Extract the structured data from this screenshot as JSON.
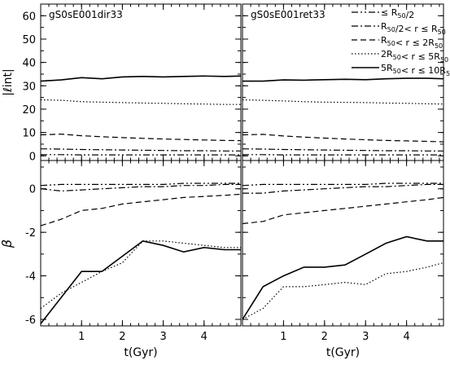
{
  "chart_data": {
    "type": "line",
    "xlabel": "t(Gyr)",
    "x_ticks": [
      1,
      2,
      3,
      4
    ],
    "xlim": [
      0,
      4.9
    ],
    "rows": [
      {
        "id": "lint",
        "ylabel": "|ℓint|",
        "ylim": [
          -2,
          65
        ],
        "yticks": [
          0,
          10,
          20,
          30,
          40,
          50,
          60
        ]
      },
      {
        "id": "beta",
        "ylabel": "β",
        "ylim": [
          -6.3,
          1.3
        ],
        "yticks": [
          0,
          -2,
          -4,
          -6
        ]
      }
    ],
    "legend": {
      "placement": "top-right",
      "entries": [
        {
          "style": "dashdotdot",
          "label": "≤ R50/2"
        },
        {
          "style": "dashdot",
          "label": "R50/2< r ≤ R50"
        },
        {
          "style": "dashed",
          "label": "R50< r ≤ 2R50"
        },
        {
          "style": "dotted",
          "label": "2R50< r ≤ 5R50"
        },
        {
          "style": "solid",
          "label": "5R50< r ≤ 10R50"
        }
      ]
    },
    "panels": [
      {
        "title": "gS0sE001dir33",
        "x": [
          0.0,
          0.5,
          1.0,
          1.5,
          2.0,
          2.5,
          3.0,
          3.5,
          4.0,
          4.5,
          4.9
        ],
        "lint": {
          "dashdotdot": [
            0.5,
            0.5,
            0.4,
            0.4,
            0.4,
            0.4,
            0.4,
            0.4,
            0.4,
            0.4,
            0.4
          ],
          "dashdot": [
            3.0,
            2.9,
            2.7,
            2.6,
            2.5,
            2.4,
            2.3,
            2.2,
            2.2,
            2.1,
            2.1
          ],
          "dashed": [
            9.0,
            9.3,
            8.6,
            8.2,
            7.8,
            7.5,
            7.2,
            7.0,
            6.8,
            6.6,
            6.5
          ],
          "dotted": [
            24.0,
            23.8,
            23.2,
            23.0,
            22.8,
            22.6,
            22.5,
            22.3,
            22.2,
            22.0,
            22.0
          ],
          "solid": [
            32.0,
            32.5,
            33.5,
            33.0,
            33.8,
            34.0,
            33.8,
            34.0,
            34.2,
            34.0,
            34.2
          ]
        },
        "beta": {
          "dashdotdot": [
            0.15,
            0.2,
            0.2,
            0.2,
            0.2,
            0.2,
            0.2,
            0.25,
            0.25,
            0.25,
            0.25
          ],
          "dashdot": [
            0.0,
            -0.1,
            -0.05,
            0.0,
            0.05,
            0.1,
            0.1,
            0.15,
            0.15,
            0.2,
            0.2
          ],
          "dashed": [
            -1.7,
            -1.4,
            -1.0,
            -0.9,
            -0.7,
            -0.6,
            -0.5,
            -0.4,
            -0.35,
            -0.3,
            -0.25
          ],
          "dotted": [
            -5.5,
            -4.8,
            -4.3,
            -3.8,
            -3.4,
            -2.4,
            -2.4,
            -2.5,
            -2.6,
            -2.7,
            -2.7
          ],
          "solid": [
            -6.2,
            -5.0,
            -3.8,
            -3.8,
            -3.1,
            -2.4,
            -2.6,
            -2.9,
            -2.7,
            -2.8,
            -2.8
          ]
        }
      },
      {
        "title": "gS0sE001ret33",
        "x": [
          0.0,
          0.5,
          1.0,
          1.5,
          2.0,
          2.5,
          3.0,
          3.5,
          4.0,
          4.5,
          4.9
        ],
        "lint": {
          "dashdotdot": [
            0.5,
            0.5,
            0.4,
            0.4,
            0.4,
            0.4,
            0.4,
            0.4,
            0.4,
            0.4,
            0.4
          ],
          "dashdot": [
            3.0,
            2.9,
            2.7,
            2.6,
            2.5,
            2.4,
            2.3,
            2.2,
            2.2,
            2.1,
            2.1
          ],
          "dashed": [
            9.0,
            9.2,
            8.5,
            8.0,
            7.6,
            7.2,
            6.9,
            6.6,
            6.4,
            6.2,
            6.0
          ],
          "dotted": [
            24.0,
            23.8,
            23.5,
            23.2,
            23.0,
            22.9,
            22.8,
            22.6,
            22.5,
            22.3,
            22.2
          ],
          "solid": [
            32.0,
            32.0,
            32.5,
            32.4,
            32.6,
            32.8,
            32.6,
            33.0,
            33.2,
            33.2,
            33.0
          ]
        },
        "beta": {
          "dashdotdot": [
            0.15,
            0.2,
            0.2,
            0.2,
            0.2,
            0.2,
            0.2,
            0.25,
            0.25,
            0.25,
            0.25
          ],
          "dashdot": [
            -0.2,
            -0.2,
            -0.1,
            -0.05,
            0.0,
            0.05,
            0.1,
            0.1,
            0.15,
            0.2,
            0.2
          ],
          "dashed": [
            -1.6,
            -1.5,
            -1.2,
            -1.1,
            -1.0,
            -0.9,
            -0.8,
            -0.7,
            -0.6,
            -0.5,
            -0.4
          ],
          "dotted": [
            -6.0,
            -5.5,
            -4.5,
            -4.5,
            -4.4,
            -4.3,
            -4.4,
            -3.9,
            -3.8,
            -3.6,
            -3.4
          ],
          "solid": [
            -6.0,
            -4.5,
            -4.0,
            -3.6,
            -3.6,
            -3.5,
            -3.0,
            -2.5,
            -2.2,
            -2.4,
            -2.4
          ]
        }
      }
    ]
  }
}
